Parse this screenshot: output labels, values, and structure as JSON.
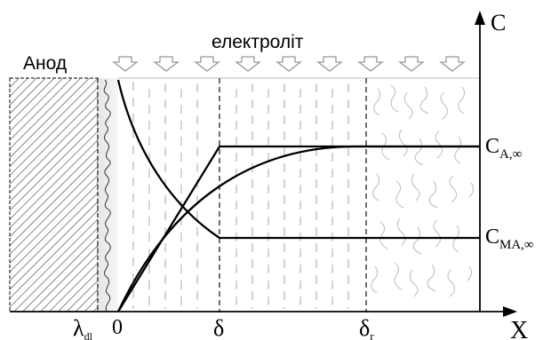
{
  "labels": {
    "anode": "Анод",
    "electrolyte": "електроліт",
    "axis_c": "C",
    "axis_x": "X",
    "lambda_main": "λ",
    "lambda_sub": "dl",
    "zero": "0",
    "delta": "δ",
    "delta_r_main": "δ",
    "delta_r_sub": "r",
    "c_a_main": "C",
    "c_a_sub": "A,∞",
    "c_ma_main": "C",
    "c_ma_sub": "MA,∞"
  },
  "icons": {
    "flow_arrow": "down-arrow-icon",
    "anode_hatch": "diagonal-hatch-pattern"
  },
  "colors": {
    "line": "#000000",
    "hatch": "#555555",
    "dash": "#888888",
    "arrow_outline": "#999999"
  }
}
